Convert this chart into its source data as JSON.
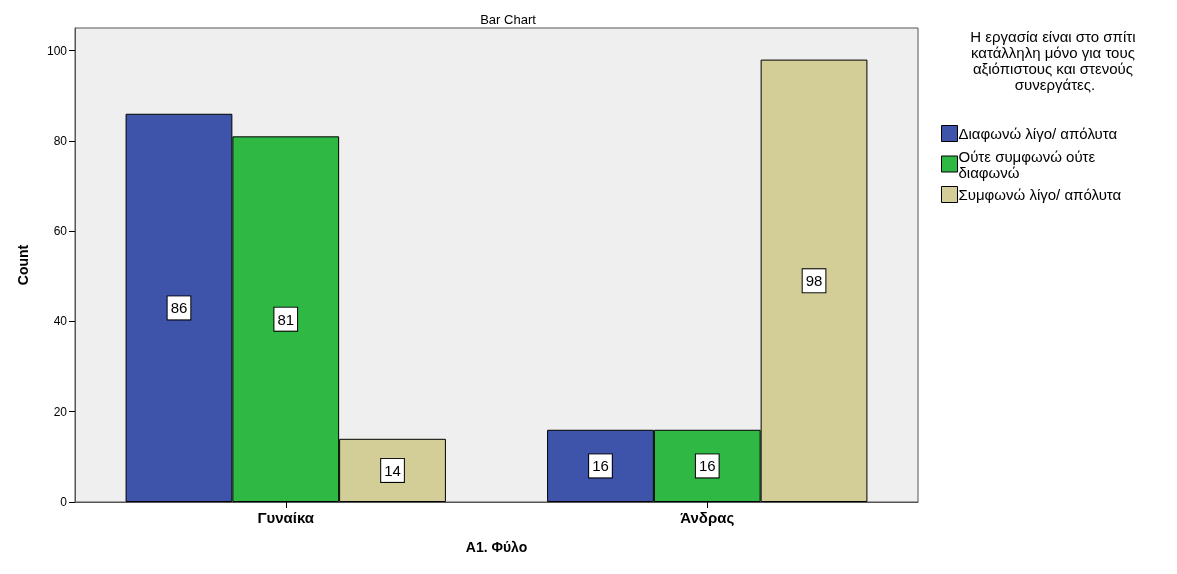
{
  "chart_data": {
    "type": "bar",
    "title": "Bar Chart",
    "xlabel": "A1. Φύλο",
    "ylabel": "Count",
    "legend_title": "Η εργασία είναι στο σπίτι κατάλληλη μόνο για τους αξιόπιστους και στενούς συνεργάτες.",
    "categories": [
      "Γυναίκα",
      "Άνδρας"
    ],
    "series": [
      {
        "name": "Διαφωνώ λίγο/ απόλυτα",
        "color": "#3d54aa",
        "values": [
          86,
          16
        ]
      },
      {
        "name": "Ούτε συμφωνώ ούτε διαφωνώ",
        "color": "#2fb844",
        "values": [
          81,
          16
        ]
      },
      {
        "name": "Συμφωνώ λίγο/ απόλυτα",
        "color": "#d3ce97",
        "values": [
          14,
          98
        ]
      }
    ],
    "ylim": [
      0,
      105
    ],
    "yticks": [
      0,
      20,
      40,
      60,
      80,
      100
    ],
    "data_labels": true,
    "legend": "right",
    "grid": false
  }
}
